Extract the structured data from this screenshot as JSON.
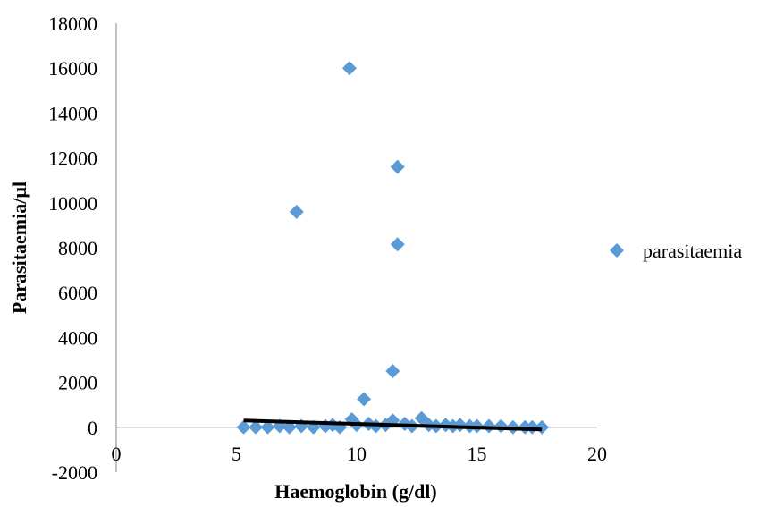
{
  "chart_data": {
    "type": "scatter",
    "title": "",
    "xlabel": "Haemoglobin (g/dl)",
    "ylabel": "Parasitaemia/µl",
    "xlim": [
      0,
      20
    ],
    "ylim": [
      -2000,
      18000
    ],
    "x_ticks": [
      "0",
      "5",
      "10",
      "15",
      "20"
    ],
    "y_ticks": [
      "-2000",
      "0",
      "2000",
      "4000",
      "6000",
      "8000",
      "10000",
      "12000",
      "14000",
      "16000",
      "18000"
    ],
    "grid": false,
    "legend_position": "right",
    "series": [
      {
        "name": "parasitaemia",
        "color": "#5b9bd5",
        "marker": "diamond",
        "points": [
          {
            "x": 9.7,
            "y": 16000
          },
          {
            "x": 11.7,
            "y": 11600
          },
          {
            "x": 7.5,
            "y": 9600
          },
          {
            "x": 11.7,
            "y": 8150
          },
          {
            "x": 11.5,
            "y": 2500
          },
          {
            "x": 10.3,
            "y": 1250
          },
          {
            "x": 12.7,
            "y": 400
          },
          {
            "x": 9.8,
            "y": 350
          },
          {
            "x": 11.5,
            "y": 300
          },
          {
            "x": 5.3,
            "y": 0
          },
          {
            "x": 5.8,
            "y": 0
          },
          {
            "x": 6.3,
            "y": 0
          },
          {
            "x": 6.8,
            "y": 50
          },
          {
            "x": 7.2,
            "y": 0
          },
          {
            "x": 7.7,
            "y": 50
          },
          {
            "x": 8.2,
            "y": 0
          },
          {
            "x": 8.7,
            "y": 50
          },
          {
            "x": 9.0,
            "y": 100
          },
          {
            "x": 9.3,
            "y": 0
          },
          {
            "x": 10.0,
            "y": 100
          },
          {
            "x": 10.5,
            "y": 150
          },
          {
            "x": 10.8,
            "y": 50
          },
          {
            "x": 11.2,
            "y": 100
          },
          {
            "x": 12.0,
            "y": 150
          },
          {
            "x": 12.3,
            "y": 50
          },
          {
            "x": 13.0,
            "y": 100
          },
          {
            "x": 13.3,
            "y": 50
          },
          {
            "x": 13.7,
            "y": 100
          },
          {
            "x": 14.0,
            "y": 50
          },
          {
            "x": 14.3,
            "y": 100
          },
          {
            "x": 14.7,
            "y": 50
          },
          {
            "x": 15.0,
            "y": 50
          },
          {
            "x": 15.5,
            "y": 50
          },
          {
            "x": 16.0,
            "y": 50
          },
          {
            "x": 16.5,
            "y": 0
          },
          {
            "x": 17.0,
            "y": 0
          },
          {
            "x": 17.3,
            "y": 0
          },
          {
            "x": 17.7,
            "y": 0
          }
        ]
      }
    ],
    "trendline": {
      "color": "#000000",
      "points": [
        {
          "x": 5.3,
          "y": 300
        },
        {
          "x": 17.7,
          "y": -100
        }
      ]
    }
  }
}
